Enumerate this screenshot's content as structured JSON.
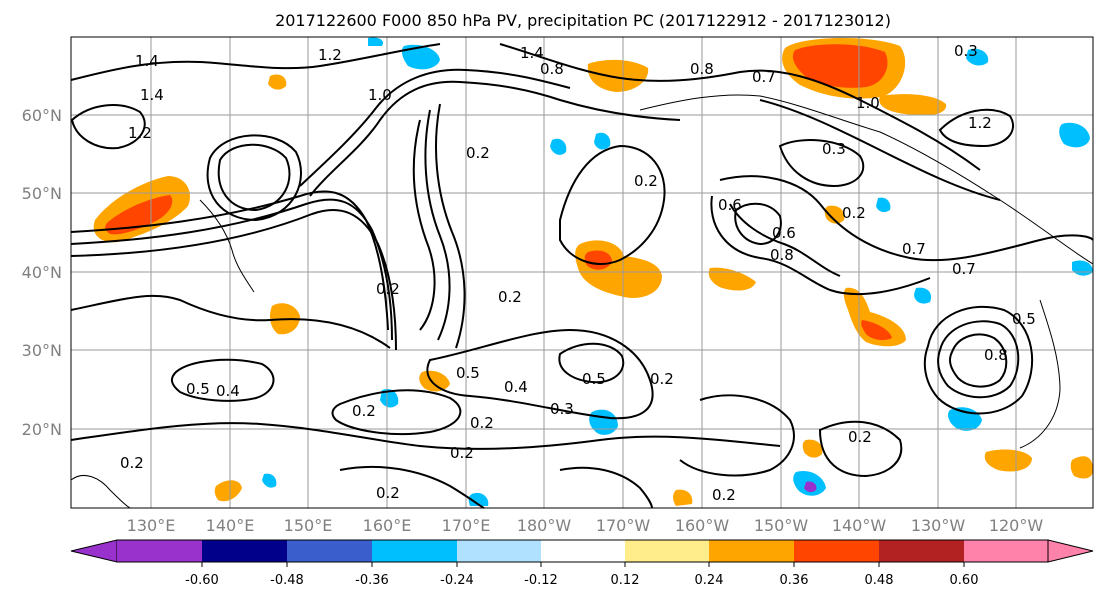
{
  "title": "2017122600 F000 850 hPa PV, precipitation PC (2017122912 - 2017123012)",
  "map": {
    "lon_labels": [
      "130°E",
      "140°E",
      "150°E",
      "160°E",
      "170°E",
      "180°W",
      "170°W",
      "160°W",
      "150°W",
      "140°W",
      "130°W",
      "120°W"
    ],
    "lat_labels": [
      "60°N",
      "50°N",
      "40°N",
      "30°N",
      "20°N"
    ],
    "gridlines": true,
    "field_colors": {
      "positive_fill": "#ffa500",
      "negative_fill": "#00bfff"
    },
    "contour_labels": [
      "1.4",
      "1.4",
      "1.4",
      "1.2",
      "1.2",
      "1.0",
      "0.8",
      "0.8",
      "0.7",
      "1.0",
      "1.2",
      "0.3",
      "0.2",
      "0.2",
      "0.2",
      "0.2",
      "0.5",
      "0.4",
      "0.3",
      "0.5",
      "0.2",
      "0.4",
      "0.5",
      "0.2",
      "0.2",
      "0.2",
      "0.2",
      "0.3",
      "0.6",
      "0.8",
      "0.7",
      "0.2",
      "0.5",
      "0.8",
      "0.2",
      "0.6",
      "0.7",
      "0.2",
      "0.2"
    ]
  },
  "colorbar": {
    "colors": [
      "#9932cc",
      "#00008b",
      "#3a5fcd",
      "#00bfff",
      "#b0e2ff",
      "#ffffff",
      "#ffec8b",
      "#ffa500",
      "#ff4500",
      "#b22222",
      "#ff82ab"
    ],
    "tick_labels": [
      "-0.60",
      "-0.48",
      "-0.36",
      "-0.24",
      "-0.12",
      "0.12",
      "0.24",
      "0.36",
      "0.48",
      "0.60"
    ],
    "extend": "both"
  }
}
